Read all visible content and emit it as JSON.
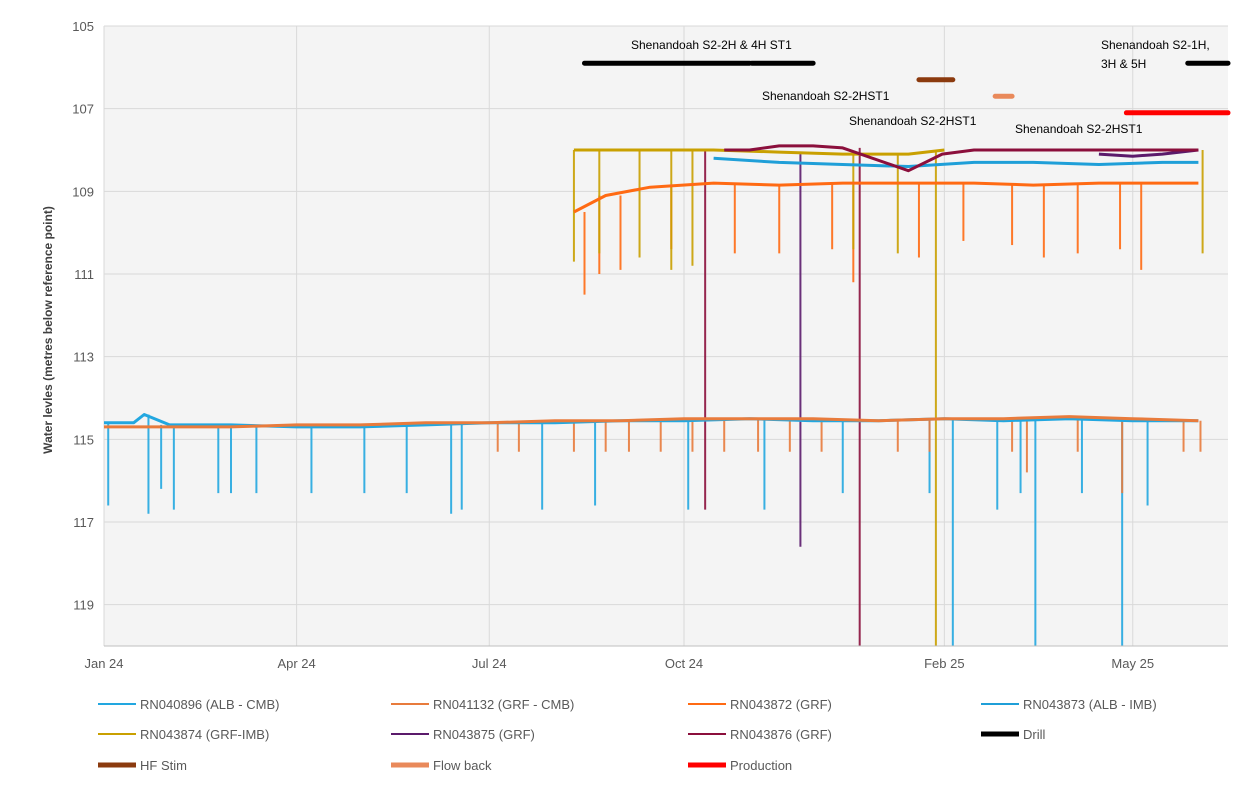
{
  "chart_data": {
    "type": "line",
    "title": "",
    "ylabel": "Water levles (metres below reference point)",
    "xlabel": "",
    "y_inverted": true,
    "ylim": [
      105,
      120
    ],
    "yticks": [
      105,
      107,
      109,
      111,
      113,
      115,
      117,
      119
    ],
    "xticks": [
      {
        "label": "Jan 24",
        "date": "2024-01-01"
      },
      {
        "label": "Apr 24",
        "date": "2024-04-01"
      },
      {
        "label": "Jul 24",
        "date": "2024-07-01"
      },
      {
        "label": "Oct 24",
        "date": "2024-10-01"
      },
      {
        "label": "Feb 25",
        "date": "2025-02-01"
      },
      {
        "label": "May 25",
        "date": "2025-05-01"
      }
    ],
    "xlim": [
      "2024-01-01",
      "2025-06-15"
    ],
    "grid": true,
    "legend_position": "bottom",
    "series": [
      {
        "name": "RN040896 (ALB - CMB)",
        "color": "#22a7e0",
        "style": "line",
        "points": [
          [
            "2024-01-01",
            114.6
          ],
          [
            "2024-01-15",
            114.6
          ],
          [
            "2024-01-20",
            114.4
          ],
          [
            "2024-02-01",
            114.65
          ],
          [
            "2024-03-01",
            114.65
          ],
          [
            "2024-04-01",
            114.7
          ],
          [
            "2024-05-01",
            114.7
          ],
          [
            "2024-06-01",
            114.65
          ],
          [
            "2024-07-01",
            114.6
          ],
          [
            "2024-08-01",
            114.6
          ],
          [
            "2024-09-01",
            114.55
          ],
          [
            "2024-10-01",
            114.55
          ],
          [
            "2024-11-01",
            114.5
          ],
          [
            "2024-12-01",
            114.55
          ],
          [
            "2025-01-01",
            114.55
          ],
          [
            "2025-02-01",
            114.5
          ],
          [
            "2025-03-01",
            114.55
          ],
          [
            "2025-04-01",
            114.5
          ],
          [
            "2025-05-01",
            114.55
          ],
          [
            "2025-06-01",
            114.55
          ]
        ],
        "spikes": [
          [
            "2024-01-03",
            116.6
          ],
          [
            "2024-01-22",
            116.8
          ],
          [
            "2024-01-28",
            116.2
          ],
          [
            "2024-02-03",
            116.7
          ],
          [
            "2024-02-24",
            116.3
          ],
          [
            "2024-03-01",
            116.3
          ],
          [
            "2024-03-13",
            116.3
          ],
          [
            "2024-04-08",
            116.3
          ],
          [
            "2024-05-03",
            116.3
          ],
          [
            "2024-05-23",
            116.3
          ],
          [
            "2024-06-13",
            116.8
          ],
          [
            "2024-06-18",
            116.7
          ],
          [
            "2024-07-26",
            116.7
          ],
          [
            "2024-08-20",
            116.6
          ],
          [
            "2024-10-03",
            116.7
          ],
          [
            "2024-11-08",
            116.7
          ],
          [
            "2024-12-15",
            116.3
          ],
          [
            "2025-01-25",
            116.3
          ],
          [
            "2025-02-05",
            120
          ],
          [
            "2025-02-26",
            116.7
          ],
          [
            "2025-03-09",
            116.3
          ],
          [
            "2025-03-16",
            120
          ],
          [
            "2025-04-07",
            116.3
          ],
          [
            "2025-04-26",
            120
          ],
          [
            "2025-05-08",
            116.6
          ]
        ]
      },
      {
        "name": "RN041132 (GRF - CMB)",
        "color": "#e87b3c",
        "style": "line",
        "points": [
          [
            "2024-01-01",
            114.7
          ],
          [
            "2024-02-01",
            114.7
          ],
          [
            "2024-03-01",
            114.7
          ],
          [
            "2024-04-01",
            114.65
          ],
          [
            "2024-05-01",
            114.65
          ],
          [
            "2024-06-01",
            114.6
          ],
          [
            "2024-07-01",
            114.6
          ],
          [
            "2024-08-01",
            114.55
          ],
          [
            "2024-09-01",
            114.55
          ],
          [
            "2024-10-01",
            114.5
          ],
          [
            "2024-11-01",
            114.5
          ],
          [
            "2024-12-01",
            114.5
          ],
          [
            "2025-01-01",
            114.55
          ],
          [
            "2025-02-01",
            114.5
          ],
          [
            "2025-03-01",
            114.5
          ],
          [
            "2025-04-01",
            114.45
          ],
          [
            "2025-05-01",
            114.5
          ],
          [
            "2025-06-01",
            114.55
          ]
        ],
        "spikes": [
          [
            "2024-07-05",
            115.3
          ],
          [
            "2024-07-15",
            115.3
          ],
          [
            "2024-08-10",
            115.3
          ],
          [
            "2024-08-25",
            115.3
          ],
          [
            "2024-09-05",
            115.3
          ],
          [
            "2024-09-20",
            115.3
          ],
          [
            "2024-10-05",
            115.3
          ],
          [
            "2024-10-20",
            115.3
          ],
          [
            "2024-11-05",
            115.3
          ],
          [
            "2024-11-20",
            115.3
          ],
          [
            "2024-12-05",
            115.3
          ],
          [
            "2025-01-10",
            115.3
          ],
          [
            "2025-01-25",
            115.3
          ],
          [
            "2025-03-05",
            115.3
          ],
          [
            "2025-03-12",
            115.8
          ],
          [
            "2025-04-05",
            115.3
          ],
          [
            "2025-04-26",
            116.3
          ],
          [
            "2025-05-25",
            115.3
          ],
          [
            "2025-06-02",
            115.3
          ]
        ]
      },
      {
        "name": "RN043872 (GRF)",
        "color": "#ff6a13",
        "style": "line",
        "points": [
          [
            "2024-08-10",
            109.5
          ],
          [
            "2024-08-25",
            109.1
          ],
          [
            "2024-09-15",
            108.9
          ],
          [
            "2024-10-15",
            108.8
          ],
          [
            "2024-11-15",
            108.85
          ],
          [
            "2024-12-15",
            108.8
          ],
          [
            "2025-01-15",
            108.8
          ],
          [
            "2025-02-15",
            108.8
          ],
          [
            "2025-03-15",
            108.85
          ],
          [
            "2025-04-15",
            108.8
          ],
          [
            "2025-05-15",
            108.8
          ],
          [
            "2025-06-01",
            108.8
          ]
        ],
        "spikes": [
          [
            "2024-08-15",
            111.5
          ],
          [
            "2024-08-22",
            111.0
          ],
          [
            "2024-09-01",
            110.9
          ],
          [
            "2024-09-25",
            110.4
          ],
          [
            "2024-10-25",
            110.5
          ],
          [
            "2024-11-15",
            110.5
          ],
          [
            "2024-12-10",
            110.4
          ],
          [
            "2024-12-20",
            111.2
          ],
          [
            "2025-01-20",
            110.6
          ],
          [
            "2025-02-10",
            110.2
          ],
          [
            "2025-03-05",
            110.3
          ],
          [
            "2025-03-20",
            110.6
          ],
          [
            "2025-04-05",
            110.5
          ],
          [
            "2025-04-25",
            110.4
          ],
          [
            "2025-05-05",
            110.9
          ]
        ]
      },
      {
        "name": "RN043873 (ALB - IMB)",
        "color": "#1f9fd8",
        "style": "line",
        "points": [
          [
            "2024-10-15",
            108.2
          ],
          [
            "2024-11-15",
            108.3
          ],
          [
            "2024-12-15",
            108.35
          ],
          [
            "2025-01-15",
            108.4
          ],
          [
            "2025-02-15",
            108.3
          ],
          [
            "2025-03-15",
            108.3
          ],
          [
            "2025-04-15",
            108.35
          ],
          [
            "2025-05-15",
            108.3
          ],
          [
            "2025-06-01",
            108.3
          ]
        ],
        "spikes": []
      },
      {
        "name": "RN043874 (GRF-IMB)",
        "color": "#c9a000",
        "style": "line",
        "points": [
          [
            "2024-08-10",
            108.0
          ],
          [
            "2024-08-25",
            108.0
          ],
          [
            "2024-09-15",
            108.0
          ],
          [
            "2024-10-15",
            108.0
          ],
          [
            "2024-11-15",
            108.05
          ],
          [
            "2024-12-15",
            108.1
          ],
          [
            "2025-01-15",
            108.1
          ],
          [
            "2025-02-01",
            108.0
          ]
        ],
        "spikes": [
          [
            "2024-08-10",
            110.7
          ],
          [
            "2024-08-22",
            110.5
          ],
          [
            "2024-09-10",
            110.6
          ],
          [
            "2024-09-25",
            110.9
          ],
          [
            "2024-10-05",
            110.8
          ],
          [
            "2024-12-20",
            110.4
          ],
          [
            "2025-01-10",
            110.5
          ],
          [
            "2025-01-28",
            120
          ],
          [
            "2025-06-03",
            110.5
          ]
        ]
      },
      {
        "name": "RN043875 (GRF)",
        "color": "#5b1a6b",
        "style": "line",
        "points": [
          [
            "2025-04-15",
            108.1
          ],
          [
            "2025-05-01",
            108.15
          ],
          [
            "2025-05-15",
            108.1
          ],
          [
            "2025-06-01",
            108.0
          ]
        ],
        "spikes": [
          [
            "2024-11-25",
            117.6
          ]
        ]
      },
      {
        "name": "RN043876 (GRF)",
        "color": "#8b0f3c",
        "style": "line",
        "points": [
          [
            "2024-10-20",
            108.0
          ],
          [
            "2024-11-01",
            108.0
          ],
          [
            "2024-11-15",
            107.9
          ],
          [
            "2024-12-01",
            107.9
          ],
          [
            "2024-12-15",
            107.95
          ],
          [
            "2025-01-15",
            108.5
          ],
          [
            "2025-01-31",
            108.1
          ],
          [
            "2025-02-15",
            108.0
          ],
          [
            "2025-03-15",
            108.0
          ],
          [
            "2025-04-15",
            108.0
          ],
          [
            "2025-05-15",
            108.0
          ],
          [
            "2025-06-01",
            108.0
          ]
        ],
        "spikes": [
          [
            "2024-10-11",
            116.7
          ],
          [
            "2024-12-23",
            120
          ]
        ]
      }
    ],
    "event_bars": [
      {
        "name": "Drill",
        "color": "#000000",
        "y": 105.9,
        "segments": [
          [
            "2024-08-15",
            "2024-11-01"
          ],
          [
            "2024-11-02",
            "2024-12-01"
          ],
          [
            "2025-05-27",
            "2025-06-15"
          ]
        ]
      },
      {
        "name": "HF Stim",
        "color": "#8b3a0e",
        "y": 106.3,
        "segments": [
          [
            "2025-01-20",
            "2025-02-05"
          ]
        ]
      },
      {
        "name": "Flow back",
        "color": "#e9895a",
        "y": 106.7,
        "segments": [
          [
            "2025-02-25",
            "2025-03-05"
          ]
        ]
      },
      {
        "name": "Production",
        "color": "#ff0000",
        "y": 107.1,
        "segments": [
          [
            "2025-04-28",
            "2025-06-15"
          ]
        ]
      }
    ],
    "annotations": [
      {
        "text": "Shenandoah S2-2H & 4H ST1"
      },
      {
        "text": "Shenandoah S2-2HST1"
      },
      {
        "text": "Shenandoah S2-2HST1"
      },
      {
        "text": "Shenandoah S2-2HST1"
      },
      {
        "text": "Shenandoah S2-1H,"
      },
      {
        "text": "3H & 5H"
      }
    ],
    "legend": [
      {
        "label": "RN040896 (ALB - CMB)",
        "color": "#22a7e0",
        "style": "line"
      },
      {
        "label": "RN041132 (GRF - CMB)",
        "color": "#e87b3c",
        "style": "line"
      },
      {
        "label": "RN043872 (GRF)",
        "color": "#ff6a13",
        "style": "line"
      },
      {
        "label": "RN043873 (ALB - IMB)",
        "color": "#1f9fd8",
        "style": "line"
      },
      {
        "label": "RN043874 (GRF-IMB)",
        "color": "#c9a000",
        "style": "line"
      },
      {
        "label": "RN043875 (GRF)",
        "color": "#5b1a6b",
        "style": "line"
      },
      {
        "label": "RN043876 (GRF)",
        "color": "#8b0f3c",
        "style": "line"
      },
      {
        "label": "Drill",
        "color": "#000000",
        "style": "bar"
      },
      {
        "label": "HF Stim",
        "color": "#8b3a0e",
        "style": "bar"
      },
      {
        "label": "Flow back",
        "color": "#e9895a",
        "style": "bar"
      },
      {
        "label": "Production",
        "color": "#ff0000",
        "style": "bar"
      }
    ]
  }
}
